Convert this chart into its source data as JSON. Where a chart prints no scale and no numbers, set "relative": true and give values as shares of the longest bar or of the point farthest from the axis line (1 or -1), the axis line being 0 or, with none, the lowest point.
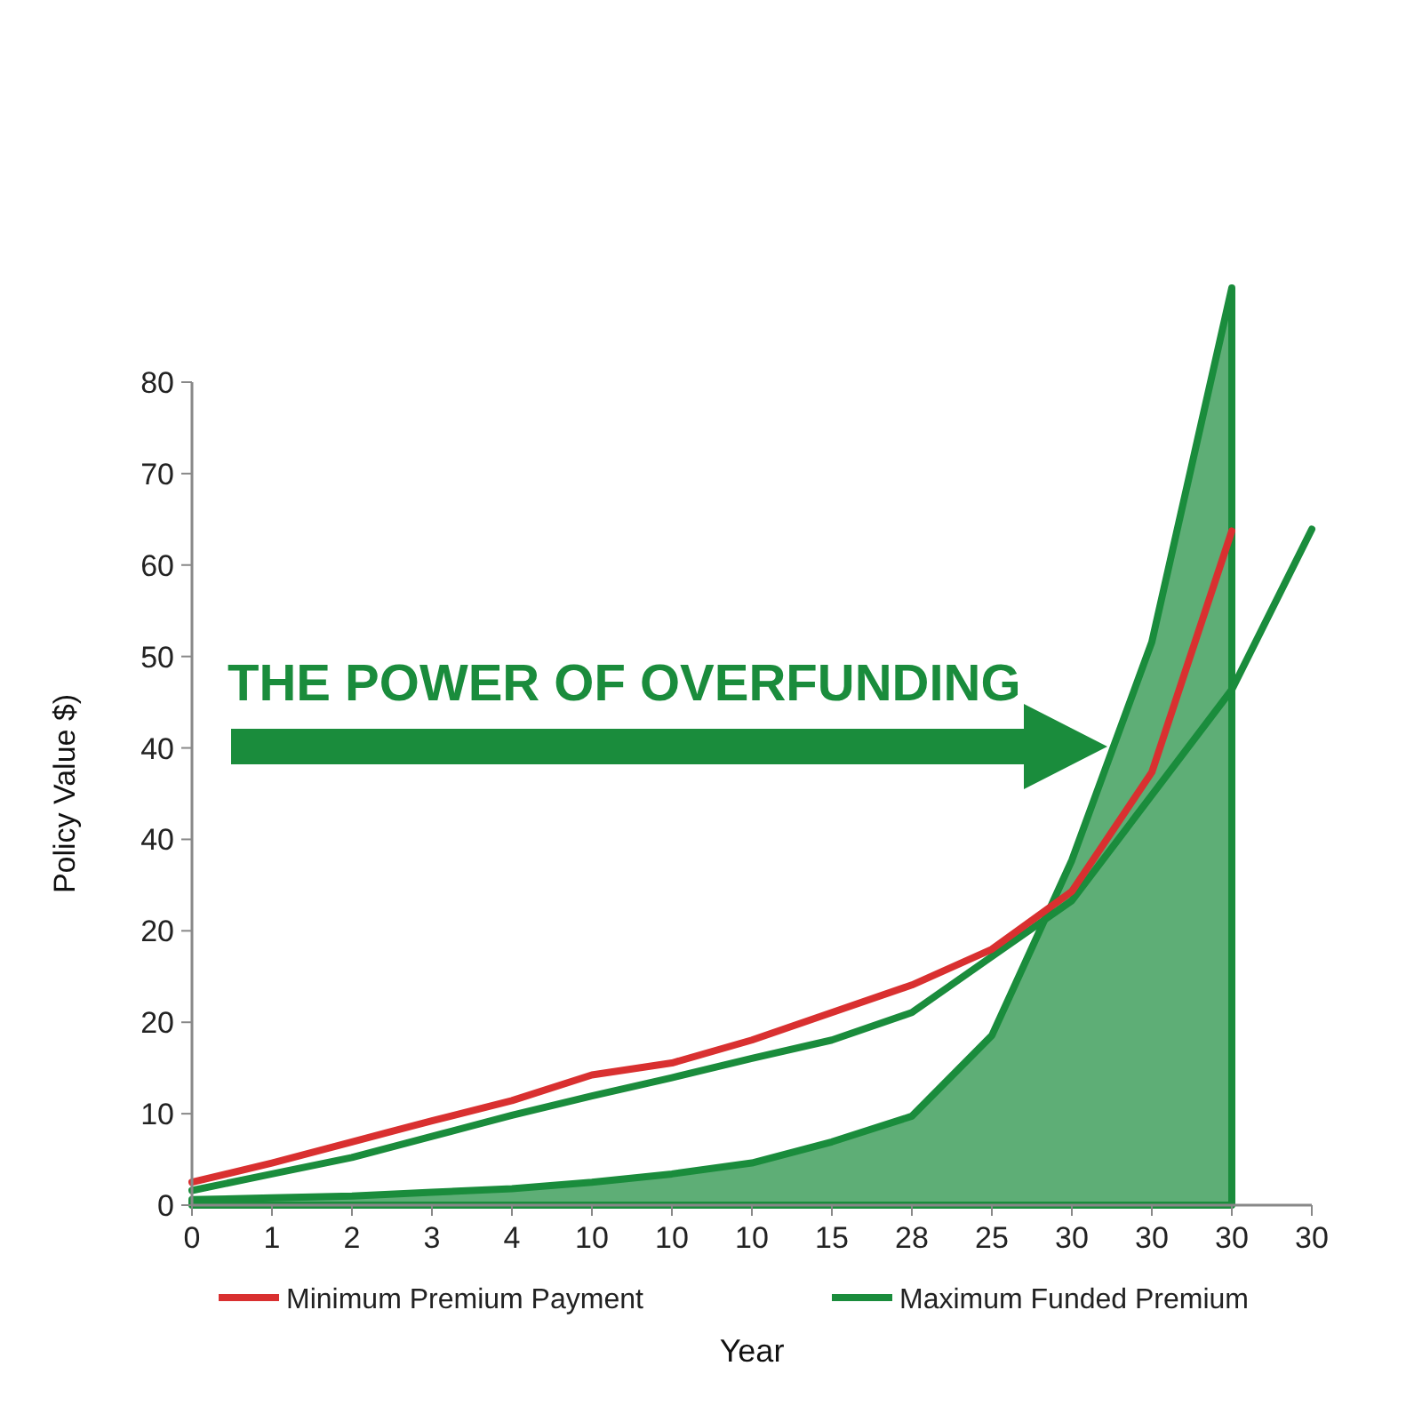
{
  "chart_data": {
    "type": "line",
    "xlabel": "Year",
    "ylabel": "Policy Value $)",
    "relative": true,
    "annotations": [
      "THE POWER OF OVERFUNDING",
      "0",
      "10",
      "20",
      "20",
      "40",
      "40",
      "50",
      "60",
      "70",
      "80"
    ],
    "categories": [
      "0",
      "1",
      "2",
      "3",
      "4",
      "10",
      "10",
      "10",
      "15",
      "28",
      "25",
      "30",
      "30",
      "30",
      "30"
    ],
    "legend": "bottom",
    "series": [
      {
        "type": "area",
        "name": "Maximum Funded Premium",
        "color": "#1a8c3c",
        "values": [
          0.006,
          0.008,
          0.01,
          0.014,
          0.018,
          0.025,
          0.034,
          0.046,
          0.069,
          0.097,
          0.185,
          0.376,
          0.614,
          1,
          null
        ]
      },
      {
        "type": "line",
        "color": "#1a8c3c",
        "values": [
          0.016,
          0.034,
          0.052,
          0.075,
          0.098,
          0.119,
          0.139,
          0.16,
          0.18,
          0.21,
          0.271,
          0.332,
          0.447,
          0.562,
          0.737
        ]
      },
      {
        "name": "Minimum Premium Payment",
        "color": "#d93030",
        "values": [
          0.025,
          0.046,
          0.069,
          0.092,
          0.114,
          0.142,
          0.155,
          0.18,
          0.21,
          0.24,
          0.279,
          0.342,
          0.472,
          0.735,
          null
        ]
      }
    ]
  }
}
